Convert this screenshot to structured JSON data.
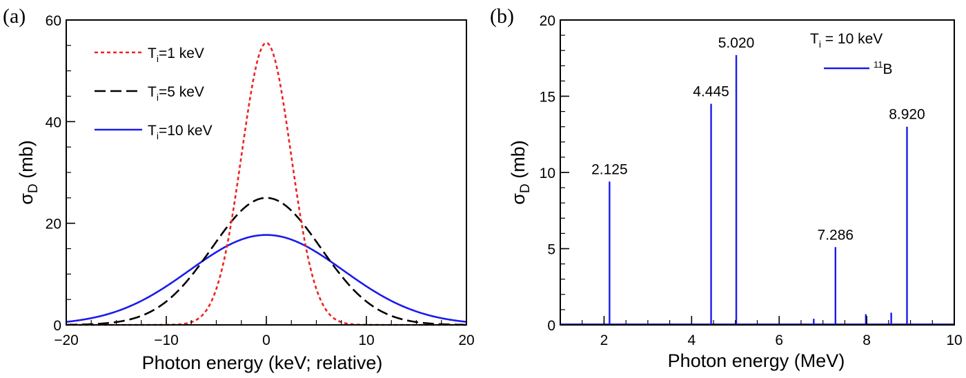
{
  "chart_data": [
    {
      "panel_label": "(a)",
      "type": "line",
      "xlabel": "Photon energy (keV; relative)",
      "ylabel": "σ",
      "ylabel_sub": "D",
      "ylabel_unit": " (mb)",
      "xlim": [
        -20,
        20
      ],
      "ylim": [
        0,
        60
      ],
      "xticks": [
        -20,
        -10,
        0,
        10,
        20
      ],
      "xtick_labels": [
        "−20",
        "−10",
        "0",
        "10",
        "20"
      ],
      "yticks": [
        0,
        20,
        40,
        60
      ],
      "ytick_labels": [
        "0",
        "20",
        "40",
        "60"
      ],
      "grid": false,
      "legend_position": "top-left",
      "series": [
        {
          "name": "Ti=1 keV",
          "label_main": "T",
          "label_sub": "i",
          "label_rest": "=1 keV",
          "color": "#ee2222",
          "style": "dotted",
          "shape": "gaussian",
          "peak": 55.5,
          "fwhm": 5.8
        },
        {
          "name": "Ti=5 keV",
          "label_main": "T",
          "label_sub": "i",
          "label_rest": "=5 keV",
          "color": "#000000",
          "style": "dashed",
          "shape": "gaussian",
          "peak": 25.0,
          "fwhm": 12.8
        },
        {
          "name": "Ti=10 keV",
          "label_main": "T",
          "label_sub": "i",
          "label_rest": "=10 keV",
          "color": "#1a1aee",
          "style": "solid",
          "shape": "gaussian",
          "peak": 17.7,
          "fwhm": 18.1
        }
      ]
    },
    {
      "panel_label": "(b)",
      "type": "bar",
      "xlabel": "Photon energy (MeV)",
      "ylabel": "σ",
      "ylabel_sub": "D",
      "ylabel_unit": " (mb)",
      "xlim": [
        1,
        10
      ],
      "ylim": [
        0,
        20
      ],
      "xticks": [
        2,
        4,
        6,
        8,
        10
      ],
      "xtick_labels": [
        "2",
        "4",
        "6",
        "8",
        "10"
      ],
      "yticks": [
        0,
        5,
        10,
        15,
        20
      ],
      "ytick_labels": [
        "0",
        "5",
        "10",
        "15",
        "20"
      ],
      "grid": false,
      "annotation": {
        "main": "T",
        "sub": "i",
        "rest": " = 10 keV"
      },
      "legend_position": "top-right",
      "series": [
        {
          "name": "11B",
          "label_sup": "11",
          "label_rest": "B",
          "color": "#1a1aee",
          "x": [
            2.125,
            4.445,
            5.02,
            6.79,
            7.286,
            7.98,
            8.56,
            8.92
          ],
          "values": [
            9.4,
            14.5,
            17.7,
            0.4,
            5.1,
            0.7,
            0.8,
            13.0
          ],
          "labels": [
            "2.125",
            "4.445",
            "5.020",
            "",
            "7.286",
            "",
            "",
            "8.920"
          ]
        }
      ]
    }
  ]
}
